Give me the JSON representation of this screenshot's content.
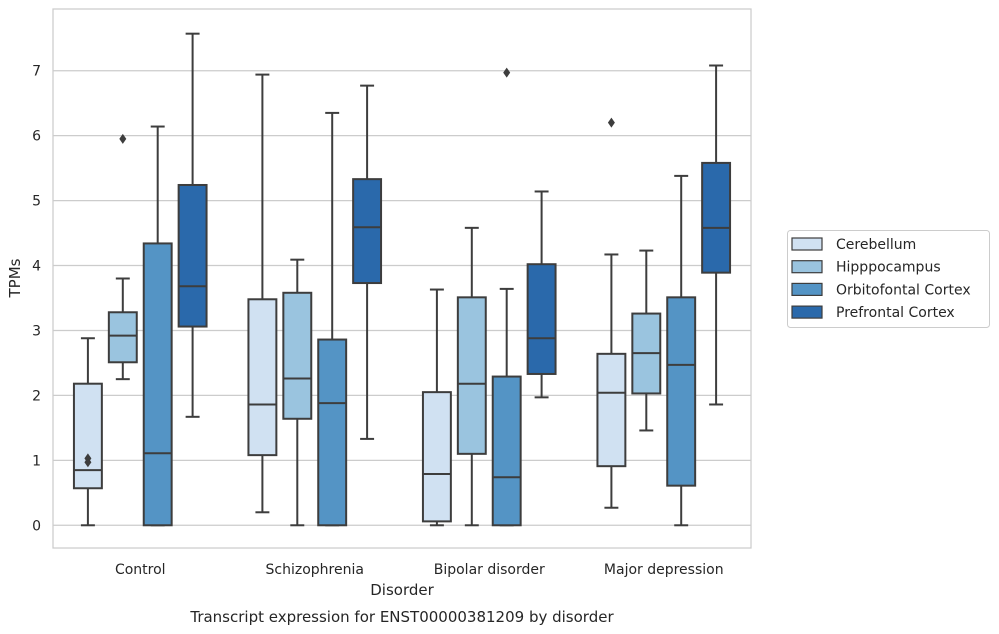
{
  "chart_data": {
    "type": "box",
    "title": "Transcript expression for ENST00000381209 by disorder",
    "xlabel": "Disorder",
    "ylabel": "TPMs",
    "ylim": [
      -0.35,
      7.95
    ],
    "yticks": [
      0,
      1,
      2,
      3,
      4,
      5,
      6,
      7
    ],
    "grid": "horizontal",
    "legend_position": "right",
    "categories": [
      "Control",
      "Schizophrenia",
      "Bipolar disorder",
      "Major depression"
    ],
    "series": [
      {
        "name": "Cerebellum",
        "color": "#d0e1f2",
        "boxes": [
          {
            "whislo": 0.0,
            "q1": 0.57,
            "med": 0.85,
            "q3": 2.18,
            "whishi": 2.88,
            "fliers": [
              0.97,
              1.03
            ]
          },
          {
            "whislo": 0.2,
            "q1": 1.08,
            "med": 1.86,
            "q3": 3.48,
            "whishi": 6.94,
            "fliers": []
          },
          {
            "whislo": 0.0,
            "q1": 0.06,
            "med": 0.79,
            "q3": 2.05,
            "whishi": 3.63,
            "fliers": []
          },
          {
            "whislo": 0.27,
            "q1": 0.91,
            "med": 2.04,
            "q3": 2.64,
            "whishi": 4.17,
            "fliers": [
              6.2
            ]
          }
        ]
      },
      {
        "name": "Hipppocampus",
        "color": "#9ac4df",
        "boxes": [
          {
            "whislo": 2.25,
            "q1": 2.51,
            "med": 2.92,
            "q3": 3.28,
            "whishi": 3.8,
            "fliers": [
              5.95
            ]
          },
          {
            "whislo": 0.0,
            "q1": 1.64,
            "med": 2.26,
            "q3": 3.58,
            "whishi": 4.09,
            "fliers": []
          },
          {
            "whislo": 0.0,
            "q1": 1.1,
            "med": 2.18,
            "q3": 3.51,
            "whishi": 4.58,
            "fliers": []
          },
          {
            "whislo": 1.46,
            "q1": 2.03,
            "med": 2.65,
            "q3": 3.26,
            "whishi": 4.23,
            "fliers": []
          }
        ]
      },
      {
        "name": "Orbitofontal Cortex",
        "color": "#5494c5",
        "boxes": [
          {
            "whislo": 0.0,
            "q1": 0.0,
            "med": 1.11,
            "q3": 4.34,
            "whishi": 6.14,
            "fliers": []
          },
          {
            "whislo": 0.0,
            "q1": 0.0,
            "med": 1.88,
            "q3": 2.86,
            "whishi": 6.35,
            "fliers": []
          },
          {
            "whislo": 0.0,
            "q1": 0.0,
            "med": 0.74,
            "q3": 2.29,
            "whishi": 3.64,
            "fliers": [
              6.97
            ]
          },
          {
            "whislo": 0.0,
            "q1": 0.61,
            "med": 2.47,
            "q3": 3.51,
            "whishi": 5.38,
            "fliers": []
          }
        ]
      },
      {
        "name": "Prefrontal Cortex",
        "color": "#2a69ab",
        "boxes": [
          {
            "whislo": 1.67,
            "q1": 3.06,
            "med": 3.68,
            "q3": 5.24,
            "whishi": 7.57,
            "fliers": []
          },
          {
            "whislo": 1.33,
            "q1": 3.73,
            "med": 4.59,
            "q3": 5.33,
            "whishi": 6.77,
            "fliers": []
          },
          {
            "whislo": 1.97,
            "q1": 2.33,
            "med": 2.88,
            "q3": 4.02,
            "whishi": 5.14,
            "fliers": []
          },
          {
            "whislo": 1.86,
            "q1": 3.89,
            "med": 4.58,
            "q3": 5.58,
            "whishi": 7.08,
            "fliers": []
          }
        ]
      }
    ]
  }
}
